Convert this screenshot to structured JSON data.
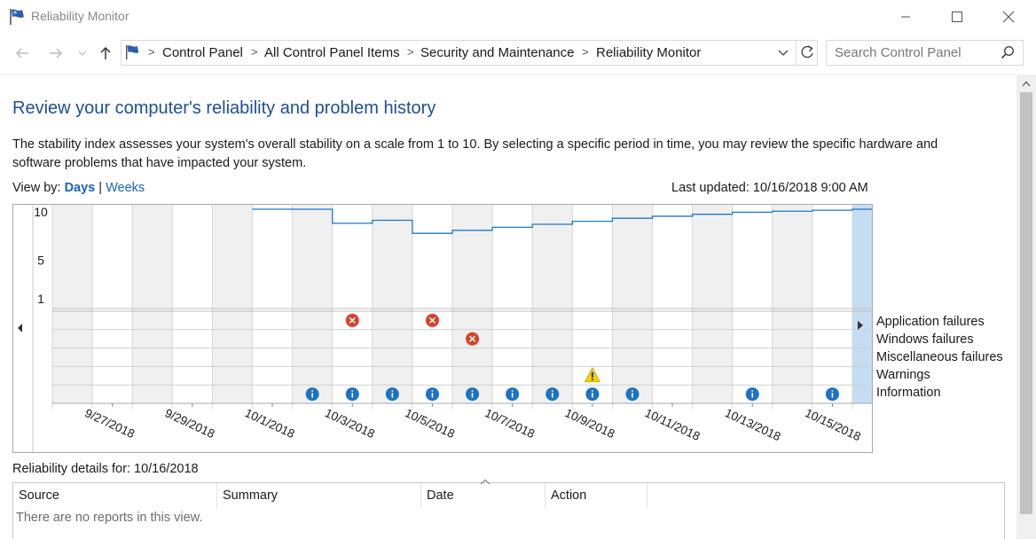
{
  "window": {
    "title": "Reliability Monitor",
    "icon": "flag-icon"
  },
  "nav": {
    "back_icon": "arrow-left-icon",
    "forward_icon": "arrow-right-icon",
    "recent_icon": "chevron-down-icon",
    "up_icon": "arrow-up-icon"
  },
  "address": {
    "breadcrumbs": [
      "Control Panel",
      "All Control Panel Items",
      "Security and Maintenance",
      "Reliability Monitor"
    ],
    "refresh_icon": "refresh-icon"
  },
  "search": {
    "placeholder": "Search Control Panel",
    "icon": "search-icon"
  },
  "page": {
    "heading": "Review your computer's reliability and problem history",
    "description": "The stability index assesses your system's overall stability on a scale from 1 to 10. By selecting a specific period in time, you may review the specific hardware and software problems that have impacted your system.",
    "view_by_label": "View by:",
    "view_days": "Days",
    "view_separator": "|",
    "view_weeks": "Weeks",
    "last_updated": "Last updated: 10/16/2018 9:00 AM"
  },
  "chart_data": {
    "type": "line",
    "y_ticks": [
      "10",
      "5",
      "1"
    ],
    "ylim": [
      1,
      10
    ],
    "x": [
      "9/26/2018",
      "9/27/2018",
      "9/28/2018",
      "9/29/2018",
      "9/30/2018",
      "10/1/2018",
      "10/2/2018",
      "10/3/2018",
      "10/4/2018",
      "10/5/2018",
      "10/6/2018",
      "10/7/2018",
      "10/8/2018",
      "10/9/2018",
      "10/10/2018",
      "10/11/2018",
      "10/12/2018",
      "10/13/2018",
      "10/14/2018",
      "10/15/2018",
      "10/16/2018"
    ],
    "x_tick_labels": [
      "9/27/2018",
      "9/29/2018",
      "10/1/2018",
      "10/3/2018",
      "10/5/2018",
      "10/7/2018",
      "10/9/2018",
      "10/11/2018",
      "10/13/2018",
      "10/15/2018"
    ],
    "stability_index": [
      {
        "date": "10/1/2018",
        "value": 10.0
      },
      {
        "date": "10/2/2018",
        "value": 10.0
      },
      {
        "date": "10/3/2018",
        "value": 8.6
      },
      {
        "date": "10/4/2018",
        "value": 8.9
      },
      {
        "date": "10/5/2018",
        "value": 7.6
      },
      {
        "date": "10/6/2018",
        "value": 7.9
      },
      {
        "date": "10/7/2018",
        "value": 8.2
      },
      {
        "date": "10/8/2018",
        "value": 8.5
      },
      {
        "date": "10/9/2018",
        "value": 8.8
      },
      {
        "date": "10/10/2018",
        "value": 9.1
      },
      {
        "date": "10/11/2018",
        "value": 9.3
      },
      {
        "date": "10/12/2018",
        "value": 9.5
      },
      {
        "date": "10/13/2018",
        "value": 9.7
      },
      {
        "date": "10/14/2018",
        "value": 9.8
      },
      {
        "date": "10/15/2018",
        "value": 9.9
      },
      {
        "date": "10/16/2018",
        "value": 10.0
      }
    ],
    "selected_date": "10/16/2018",
    "event_rows": [
      "Application failures",
      "Windows failures",
      "Miscellaneous failures",
      "Warnings",
      "Information"
    ],
    "events": [
      {
        "row": "Application failures",
        "date": "10/3/2018",
        "icon": "error-icon"
      },
      {
        "row": "Application failures",
        "date": "10/5/2018",
        "icon": "error-icon"
      },
      {
        "row": "Windows failures",
        "date": "10/6/2018",
        "icon": "error-icon"
      },
      {
        "row": "Warnings",
        "date": "10/9/2018",
        "icon": "warning-icon"
      },
      {
        "row": "Information",
        "date": "10/2/2018",
        "icon": "info-icon"
      },
      {
        "row": "Information",
        "date": "10/3/2018",
        "icon": "info-icon"
      },
      {
        "row": "Information",
        "date": "10/4/2018",
        "icon": "info-icon"
      },
      {
        "row": "Information",
        "date": "10/5/2018",
        "icon": "info-icon"
      },
      {
        "row": "Information",
        "date": "10/6/2018",
        "icon": "info-icon"
      },
      {
        "row": "Information",
        "date": "10/7/2018",
        "icon": "info-icon"
      },
      {
        "row": "Information",
        "date": "10/8/2018",
        "icon": "info-icon"
      },
      {
        "row": "Information",
        "date": "10/9/2018",
        "icon": "info-icon"
      },
      {
        "row": "Information",
        "date": "10/10/2018",
        "icon": "info-icon"
      },
      {
        "row": "Information",
        "date": "10/13/2018",
        "icon": "info-icon"
      },
      {
        "row": "Information",
        "date": "10/15/2018",
        "icon": "info-icon"
      }
    ],
    "colors": {
      "line": "#1c7ac4",
      "shaded_column": "#f0f0f0",
      "selected_column": "#c5ddf3",
      "error": "#d9432a",
      "warning": "#f5d000",
      "info": "#1a73c4"
    }
  },
  "details": {
    "title": "Reliability details for: 10/16/2018",
    "columns": [
      "Source",
      "Summary",
      "Date",
      "Action"
    ],
    "empty_message": "There are no reports in this view."
  }
}
